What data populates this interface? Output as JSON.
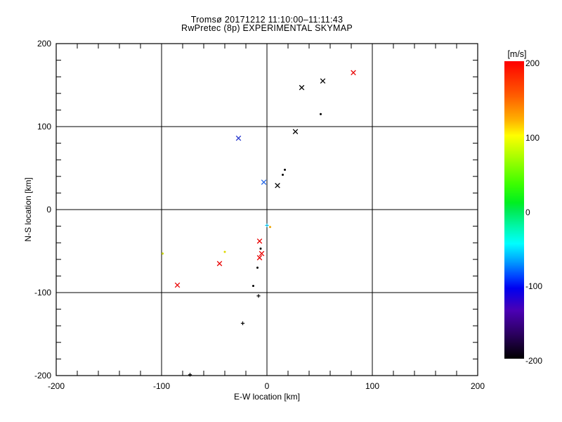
{
  "chart_data": {
    "type": "scatter",
    "title": "Tromsø 20171212 11:10:00–11:11:43",
    "subtitle": "RwPretec (8p) EXPERIMENTAL SKYMAP",
    "xlabel": "E-W location [km]",
    "ylabel": "N-S location [km]",
    "xlim": [
      -200,
      200
    ],
    "ylim": [
      -200,
      200
    ],
    "xticks": [
      -200,
      -100,
      0,
      100,
      200
    ],
    "yticks": [
      200,
      100,
      0,
      -100,
      -200
    ],
    "minor_tick_step_km": 20,
    "grid_values": [
      -100,
      0,
      100
    ],
    "grid": "on (major only)",
    "legend_position": "none",
    "colorbar": {
      "label": "[m/s]",
      "min": -200,
      "max": 200,
      "ticks": [
        200,
        100,
        0,
        -100,
        -200
      ],
      "gradient": [
        {
          "value": 200,
          "color": "#fe0000"
        },
        {
          "value": 155,
          "color": "#ff5a00"
        },
        {
          "value": 120,
          "color": "#ffb400"
        },
        {
          "value": 100,
          "color": "#fffe00"
        },
        {
          "value": 70,
          "color": "#a6fe00"
        },
        {
          "value": 35,
          "color": "#3cfe00"
        },
        {
          "value": 10,
          "color": "#00f020"
        },
        {
          "value": 0,
          "color": "#00ea50"
        },
        {
          "value": -25,
          "color": "#00f8b4"
        },
        {
          "value": -45,
          "color": "#00ffff"
        },
        {
          "value": -70,
          "color": "#009bff"
        },
        {
          "value": -90,
          "color": "#0040ff"
        },
        {
          "value": -105,
          "color": "#0000f0"
        },
        {
          "value": -135,
          "color": "#4b00b4"
        },
        {
          "value": -165,
          "color": "#2d0064"
        },
        {
          "value": -200,
          "color": "#000000"
        }
      ]
    },
    "points": [
      {
        "ew": 82,
        "ns": 165,
        "v_ms": 190,
        "color": "#e80000",
        "marker": "x"
      },
      {
        "ew": 53,
        "ns": 155,
        "v_ms": -200,
        "color": "#000000",
        "marker": "x"
      },
      {
        "ew": 33,
        "ns": 147,
        "v_ms": -200,
        "color": "#000000",
        "marker": "x"
      },
      {
        "ew": 51,
        "ns": 115,
        "v_ms": -200,
        "color": "#000000",
        "marker": "dot"
      },
      {
        "ew": 27,
        "ns": 94,
        "v_ms": -200,
        "color": "#000000",
        "marker": "x"
      },
      {
        "ew": -27,
        "ns": 86,
        "v_ms": -110,
        "color": "#2233cc",
        "marker": "x"
      },
      {
        "ew": 17,
        "ns": 48,
        "v_ms": -200,
        "color": "#000000",
        "marker": "dot"
      },
      {
        "ew": 15,
        "ns": 42,
        "v_ms": -200,
        "color": "#000000",
        "marker": "dot"
      },
      {
        "ew": 10,
        "ns": 29,
        "v_ms": -200,
        "color": "#000000",
        "marker": "x"
      },
      {
        "ew": -3,
        "ns": 33,
        "v_ms": -80,
        "color": "#2b6ce8",
        "marker": "x"
      },
      {
        "ew": 0,
        "ns": -19,
        "v_ms": -40,
        "color": "#00bfe8",
        "marker": "plus"
      },
      {
        "ew": 3,
        "ns": -21,
        "v_ms": 120,
        "color": "#eea500",
        "marker": "dot"
      },
      {
        "ew": -7,
        "ns": -38,
        "v_ms": 190,
        "color": "#e80000",
        "marker": "x"
      },
      {
        "ew": -6,
        "ns": -47,
        "v_ms": -200,
        "color": "#000000",
        "marker": "dot"
      },
      {
        "ew": -5,
        "ns": -53,
        "v_ms": 190,
        "color": "#e80000",
        "marker": "x"
      },
      {
        "ew": -7,
        "ns": -58,
        "v_ms": 190,
        "color": "#e80000",
        "marker": "x"
      },
      {
        "ew": -40,
        "ns": -51,
        "v_ms": 100,
        "color": "#ddd800",
        "marker": "dot"
      },
      {
        "ew": -99,
        "ns": -53,
        "v_ms": 100,
        "color": "#c8d400",
        "marker": "dot"
      },
      {
        "ew": -45,
        "ns": -65,
        "v_ms": 190,
        "color": "#e80000",
        "marker": "x"
      },
      {
        "ew": -85,
        "ns": -91,
        "v_ms": 190,
        "color": "#e80000",
        "marker": "x"
      },
      {
        "ew": -9,
        "ns": -70,
        "v_ms": -200,
        "color": "#000000",
        "marker": "dot"
      },
      {
        "ew": -13,
        "ns": -92,
        "v_ms": -200,
        "color": "#000000",
        "marker": "dot"
      },
      {
        "ew": -8,
        "ns": -104,
        "v_ms": -200,
        "color": "#000000",
        "marker": "plus"
      },
      {
        "ew": -23,
        "ns": -137,
        "v_ms": -200,
        "color": "#000000",
        "marker": "plus"
      },
      {
        "ew": -73,
        "ns": -199,
        "v_ms": -200,
        "color": "#000000",
        "marker": "plus"
      }
    ]
  }
}
